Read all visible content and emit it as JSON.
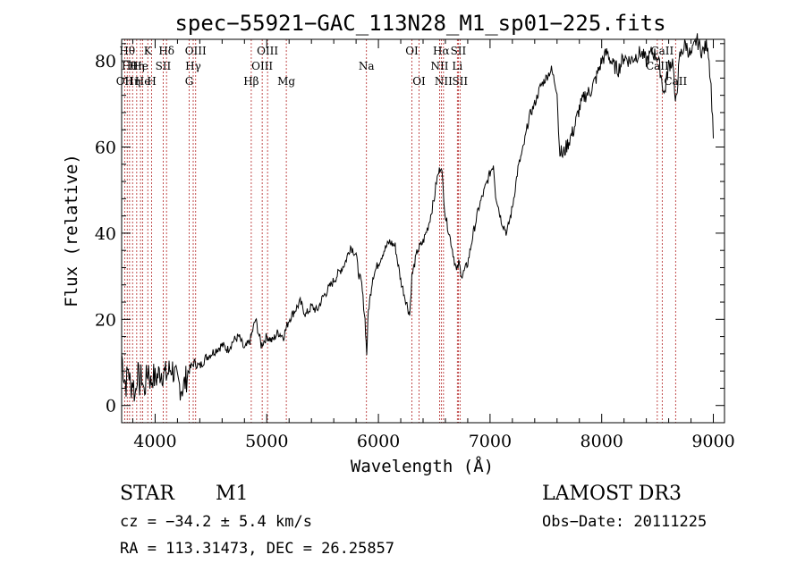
{
  "chart_data": {
    "type": "line",
    "title": "spec−55921−GAC_113N28_M1_sp01−225.fits",
    "xlabel": "Wavelength (Å)",
    "ylabel": "Flux (relative)",
    "xlim": [
      3700,
      9100
    ],
    "ylim": [
      -4,
      85
    ],
    "x_ticks": [
      4000,
      5000,
      6000,
      7000,
      8000,
      9000
    ],
    "y_ticks": [
      0,
      20,
      40,
      60,
      80
    ],
    "series": [
      {
        "name": "flux",
        "x": [
          3700,
          3720,
          3740,
          3760,
          3780,
          3800,
          3820,
          3840,
          3860,
          3880,
          3900,
          3920,
          3940,
          3960,
          3980,
          4000,
          4050,
          4100,
          4150,
          4200,
          4250,
          4300,
          4350,
          4400,
          4450,
          4500,
          4550,
          4600,
          4650,
          4700,
          4750,
          4800,
          4850,
          4880,
          4900,
          4950,
          5000,
          5050,
          5100,
          5150,
          5200,
          5250,
          5300,
          5350,
          5400,
          5450,
          5500,
          5550,
          5600,
          5650,
          5700,
          5750,
          5800,
          5820,
          5850,
          5880,
          5895,
          5910,
          5950,
          6000,
          6050,
          6100,
          6150,
          6200,
          6250,
          6280,
          6300,
          6350,
          6400,
          6450,
          6500,
          6520,
          6540,
          6563,
          6580,
          6600,
          6650,
          6700,
          6720,
          6750,
          6800,
          6850,
          6900,
          6950,
          7000,
          7030,
          7050,
          7100,
          7150,
          7200,
          7250,
          7300,
          7350,
          7400,
          7450,
          7500,
          7550,
          7600,
          7620,
          7650,
          7700,
          7750,
          7800,
          7850,
          7900,
          7950,
          8000,
          8050,
          8100,
          8150,
          8200,
          8250,
          8300,
          8350,
          8400,
          8450,
          8500,
          8530,
          8560,
          8600,
          8640,
          8660,
          8700,
          8750,
          8800,
          8850,
          8900,
          8950,
          8980,
          9000
        ],
        "y": [
          12,
          7,
          5,
          9,
          4,
          6,
          2,
          8,
          5,
          7,
          3,
          6,
          9,
          5,
          7,
          6,
          8,
          7,
          9,
          5,
          4,
          8,
          10,
          9,
          11,
          12,
          13,
          14,
          13,
          15,
          16,
          13,
          15,
          18,
          20,
          14,
          16,
          15,
          17,
          16,
          20,
          22,
          24,
          21,
          23,
          22,
          25,
          27,
          29,
          31,
          33,
          37,
          35,
          31,
          28,
          20,
          12,
          22,
          30,
          33,
          36,
          38,
          37,
          29,
          24,
          21,
          30,
          36,
          38,
          42,
          48,
          52,
          54,
          56,
          50,
          44,
          38,
          31,
          33,
          30,
          33,
          40,
          46,
          50,
          54,
          56,
          49,
          43,
          40,
          46,
          55,
          60,
          67,
          70,
          74,
          76,
          78,
          73,
          60,
          58,
          61,
          64,
          69,
          72,
          73,
          76,
          80,
          82,
          79,
          78,
          81,
          80,
          81,
          82,
          80,
          82,
          81,
          77,
          72,
          79,
          80,
          69,
          81,
          84,
          81,
          85,
          82,
          84,
          74,
          62
        ]
      }
    ],
    "line_markers": [
      {
        "wl": 3727,
        "label": "OII",
        "row": 2
      },
      {
        "wl": 3750,
        "label": "Hθ",
        "row": 0
      },
      {
        "wl": 3771,
        "label": "Hθ",
        "row": 1
      },
      {
        "wl": 3798,
        "label": "Hη",
        "row": 2
      },
      {
        "wl": 3835,
        "label": "Hη",
        "row": 1
      },
      {
        "wl": 3869,
        "label": "He",
        "row": 1
      },
      {
        "wl": 3889,
        "label": "He",
        "row": 2
      },
      {
        "wl": 3934,
        "label": "K",
        "row": 0
      },
      {
        "wl": 3969,
        "label": "H",
        "row": 2
      },
      {
        "wl": 4072,
        "label": "SII",
        "row": 1
      },
      {
        "wl": 4102,
        "label": "Hδ",
        "row": 0
      },
      {
        "wl": 4341,
        "label": "Hγ",
        "row": 1
      },
      {
        "wl": 4305,
        "label": "G",
        "row": 2
      },
      {
        "wl": 4363,
        "label": "OIII",
        "row": 0
      },
      {
        "wl": 4861,
        "label": "Hβ",
        "row": 2
      },
      {
        "wl": 4959,
        "label": "OIII",
        "row": 1
      },
      {
        "wl": 5007,
        "label": "OIII",
        "row": 0
      },
      {
        "wl": 5175,
        "label": "Mg",
        "row": 2
      },
      {
        "wl": 5893,
        "label": "Na",
        "row": 1
      },
      {
        "wl": 6300,
        "label": "OI",
        "row": 0
      },
      {
        "wl": 6364,
        "label": "OI",
        "row": 2
      },
      {
        "wl": 6548,
        "label": "NII",
        "row": 1
      },
      {
        "wl": 6563,
        "label": "Hα",
        "row": 0
      },
      {
        "wl": 6583,
        "label": "NII",
        "row": 2
      },
      {
        "wl": 6707,
        "label": "Li",
        "row": 1
      },
      {
        "wl": 6716,
        "label": "SII",
        "row": 0
      },
      {
        "wl": 6731,
        "label": "SII",
        "row": 2
      },
      {
        "wl": 8498,
        "label": "CaII",
        "row": 1
      },
      {
        "wl": 8542,
        "label": "CaII",
        "row": 0
      },
      {
        "wl": 8662,
        "label": "CaII",
        "row": 2
      }
    ]
  },
  "footer": {
    "class_label": "STAR",
    "subclass": "M1",
    "survey": "LAMOST DR3",
    "cz": "cz = −34.2 ± 5.4 km/s",
    "obs_date": "Obs−Date: 20111225",
    "coords": "RA = 113.31473, DEC =  26.25857"
  }
}
